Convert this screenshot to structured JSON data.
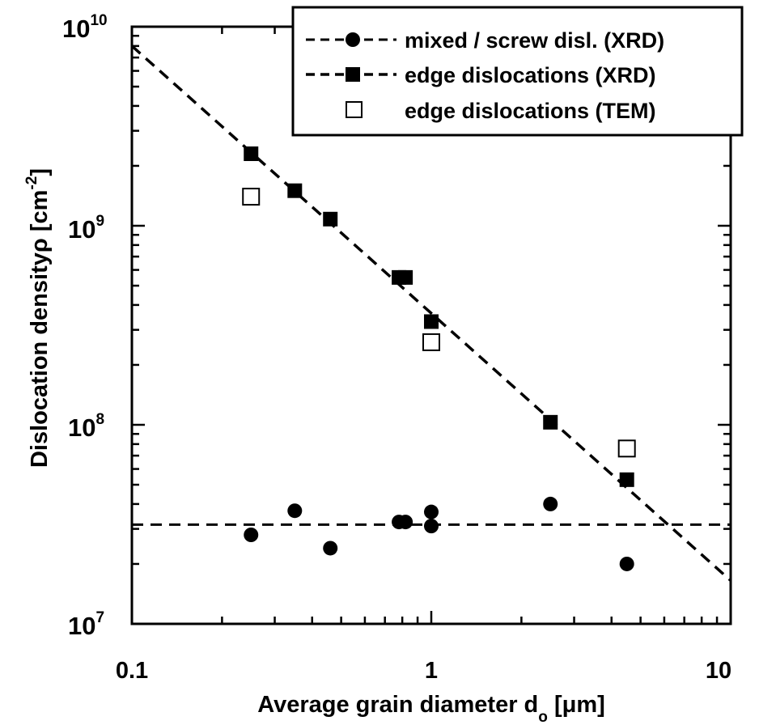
{
  "chart_data": {
    "type": "scatter",
    "x_scale": "log",
    "y_scale": "log",
    "xlim": [
      0.1,
      10
    ],
    "ylim": [
      10000000,
      10000000000
    ],
    "xlabel_main": "Average grain diameter d",
    "xlabel_sub": "o",
    "xlabel_unit": "[μm]",
    "ylabel_main": "Dislocation density",
    "ylabel_symbol": "ρ",
    "ylabel_unit_pre": "[cm",
    "ylabel_unit_exp": "-2",
    "ylabel_unit_post": "]",
    "x_ticks": [
      {
        "value": 0.1,
        "label": "0.1"
      },
      {
        "value": 1,
        "label": "1"
      },
      {
        "value": 10,
        "label": "10"
      }
    ],
    "y_ticks": [
      {
        "value": 10000000,
        "base": "10",
        "exp": "7"
      },
      {
        "value": 100000000,
        "base": "10",
        "exp": "8"
      },
      {
        "value": 1000000000,
        "base": "10",
        "exp": "9"
      },
      {
        "value": 10000000000,
        "base": "10",
        "exp": "10"
      }
    ],
    "grid": false,
    "legend_position": "top-right",
    "series": [
      {
        "name": "mixed / screw disl. (XRD)",
        "marker": "filled-circle",
        "x": [
          0.25,
          0.35,
          0.46,
          0.78,
          0.82,
          1.0,
          1.0,
          2.5,
          4.5
        ],
        "y": [
          28000000,
          37000000,
          24000000,
          32500000,
          32500000,
          36500000,
          31000000,
          40000000,
          20000000
        ],
        "fit": {
          "x": [
            0.1,
            10
          ],
          "y": [
            31500000,
            31500000
          ]
        }
      },
      {
        "name": "edge dislocations (XRD)",
        "marker": "filled-square",
        "x": [
          0.25,
          0.35,
          0.46,
          0.78,
          0.82,
          1.0,
          2.5,
          4.5
        ],
        "y": [
          2300000000,
          1500000000,
          1080000000,
          550000000,
          550000000,
          330000000,
          103000000,
          53000000
        ],
        "fit": {
          "x": [
            0.1,
            10
          ],
          "y": [
            8000000000,
            16500000
          ]
        }
      },
      {
        "name": "edge dislocations (TEM)",
        "marker": "open-square",
        "x": [
          0.25,
          1.0,
          4.5
        ],
        "y": [
          1400000000,
          260000000,
          76000000
        ]
      }
    ]
  }
}
